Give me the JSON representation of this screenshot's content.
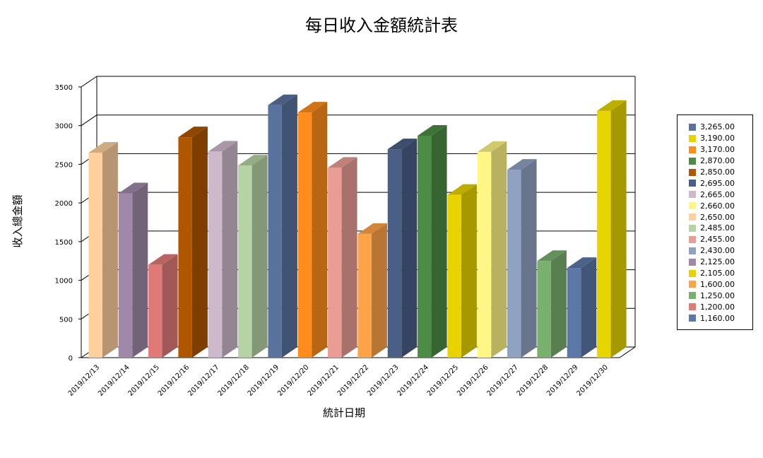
{
  "chart_data": {
    "type": "bar",
    "title": "每日收入金額統計表",
    "xlabel": "統計日期",
    "ylabel": "收入總金額",
    "ylim": [
      0,
      3500
    ],
    "yticks": [
      0,
      500,
      1000,
      1500,
      2000,
      2500,
      3000,
      3500
    ],
    "grid": true,
    "legend_position": "right",
    "categories": [
      "2019/12/13",
      "2019/12/14",
      "2019/12/15",
      "2019/12/16",
      "2019/12/17",
      "2019/12/18",
      "2019/12/19",
      "2019/12/20",
      "2019/12/21",
      "2019/12/22",
      "2019/12/23",
      "2019/12/24",
      "2019/12/25",
      "2019/12/26",
      "2019/12/27",
      "2019/12/28",
      "2019/12/29",
      "2019/12/30"
    ],
    "values": [
      2650,
      2125,
      1200,
      2850,
      2665,
      2485,
      3265,
      3170,
      2455,
      1600,
      2695,
      2870,
      2105,
      2660,
      2430,
      1250,
      1160,
      3190
    ],
    "colors": [
      "#FFCF9E",
      "#A089A8",
      "#E07A77",
      "#B05500",
      "#CEB9CC",
      "#B5D3A4",
      "#5A739E",
      "#FF8C1C",
      "#E99D94",
      "#FFA347",
      "#4A5F85",
      "#4C8C44",
      "#E8D300",
      "#FFF685",
      "#90A2C2",
      "#79B06E",
      "#5B78A8",
      "#E6D500"
    ],
    "legend": [
      {
        "label": "3,265.00",
        "color": "#5A739E"
      },
      {
        "label": "3,190.00",
        "color": "#E6D500"
      },
      {
        "label": "3,170.00",
        "color": "#FF8C1C"
      },
      {
        "label": "2,870.00",
        "color": "#4C8C44"
      },
      {
        "label": "2,850.00",
        "color": "#B05500"
      },
      {
        "label": "2,695.00",
        "color": "#4A5F85"
      },
      {
        "label": "2,665.00",
        "color": "#CEB9CC"
      },
      {
        "label": "2,660.00",
        "color": "#FFF685"
      },
      {
        "label": "2,650.00",
        "color": "#FFCF9E"
      },
      {
        "label": "2,485.00",
        "color": "#B5D3A4"
      },
      {
        "label": "2,455.00",
        "color": "#E99D94"
      },
      {
        "label": "2,430.00",
        "color": "#90A2C2"
      },
      {
        "label": "2,125.00",
        "color": "#A089A8"
      },
      {
        "label": "2,105.00",
        "color": "#E8D300"
      },
      {
        "label": "1,600.00",
        "color": "#FFA347"
      },
      {
        "label": "1,250.00",
        "color": "#79B06E"
      },
      {
        "label": "1,200.00",
        "color": "#E07A77"
      },
      {
        "label": "1,160.00",
        "color": "#5B78A8"
      }
    ]
  }
}
